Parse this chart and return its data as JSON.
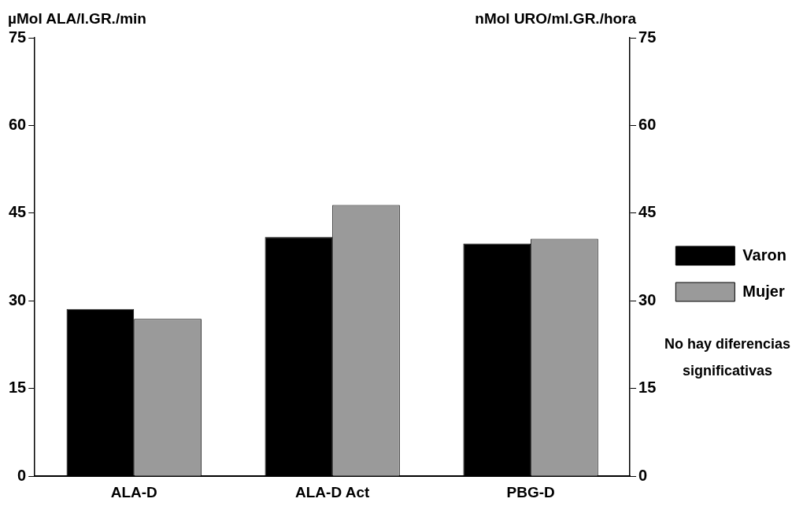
{
  "chart_data": {
    "type": "bar",
    "ylabel": "µMol ALA/l.GR./min",
    "y2label": "nMol URO/ml.GR./hora",
    "categories": [
      "ALA-D",
      "ALA-D Act",
      "PBG-D"
    ],
    "series": [
      {
        "name": "Varon",
        "color": "#000000",
        "values": [
          28.6,
          40.9,
          39.8
        ]
      },
      {
        "name": "Mujer",
        "color": "#9a9a9a",
        "values": [
          26.9,
          46.4,
          40.6
        ]
      }
    ],
    "ylim": [
      0,
      75
    ],
    "yticks": [
      0,
      15,
      30,
      45,
      60,
      75
    ],
    "y2lim": [
      0,
      75
    ],
    "y2ticks": [
      0,
      15,
      30,
      45,
      60,
      75
    ],
    "grid": false,
    "legend": "right",
    "annotations": [
      "No hay diferencias significativas"
    ]
  }
}
